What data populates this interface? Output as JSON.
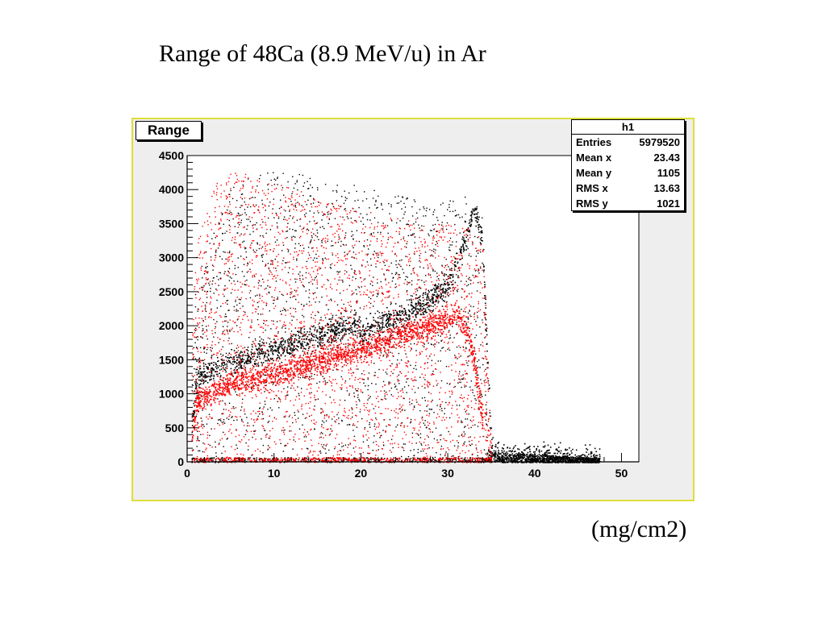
{
  "slide": {
    "title": "Range of 48Ca (8.9 MeV/u) in Ar",
    "unit_label": "(mg/cm2)"
  },
  "stats": {
    "name": "h1",
    "rows": [
      {
        "label": "Entries",
        "value": "5979520"
      },
      {
        "label": "Mean x",
        "value": "23.43"
      },
      {
        "label": "Mean y",
        "value": "1105"
      },
      {
        "label": "RMS x",
        "value": "13.63"
      },
      {
        "label": "RMS y",
        "value": "1021"
      }
    ]
  },
  "chart_data": {
    "type": "scatter",
    "title": "Range",
    "xlabel": "",
    "ylabel": "",
    "xlim": [
      0,
      52
    ],
    "ylim": [
      0,
      4500
    ],
    "x_ticks": [
      0,
      10,
      20,
      30,
      40,
      50
    ],
    "y_ticks": [
      0,
      500,
      1000,
      1500,
      2000,
      2500,
      3000,
      3500,
      4000,
      4500
    ],
    "grid": false,
    "series": [
      {
        "color": "#000000",
        "ridge": {
          "x": [
            0.5,
            1,
            2,
            5,
            10,
            15,
            19.5,
            20,
            20.5,
            25,
            28,
            30,
            31,
            32,
            33,
            34,
            34.5,
            35,
            36,
            40,
            45,
            47.5
          ],
          "y": [
            500,
            1250,
            1300,
            1450,
            1650,
            1850,
            2050,
            1850,
            1950,
            2150,
            2400,
            2600,
            2900,
            3300,
            3700,
            3300,
            1500,
            250,
            120,
            90,
            50,
            30
          ]
        },
        "envelope_max": {
          "x": [
            0,
            1,
            5,
            10,
            15,
            20,
            25,
            28,
            30,
            32,
            34,
            34.5,
            35,
            47.5
          ],
          "y": [
            1500,
            2700,
            4100,
            4300,
            4200,
            4050,
            3900,
            3800,
            3850,
            3900,
            3800,
            200,
            150,
            60
          ]
        }
      },
      {
        "color": "#ff0000",
        "ridge": {
          "x": [
            0.5,
            1,
            5,
            10,
            15,
            20,
            25,
            28,
            30,
            31,
            32,
            33,
            34
          ],
          "y": [
            300,
            900,
            1150,
            1300,
            1500,
            1650,
            1900,
            2000,
            2100,
            2200,
            2000,
            1500,
            600
          ]
        },
        "envelope_max": {
          "x": [
            0,
            1,
            3,
            5,
            10,
            15,
            20,
            25,
            30,
            34,
            35
          ],
          "y": [
            800,
            3200,
            4100,
            4300,
            4100,
            3900,
            3700,
            3600,
            3500,
            3400,
            100
          ]
        }
      }
    ]
  }
}
